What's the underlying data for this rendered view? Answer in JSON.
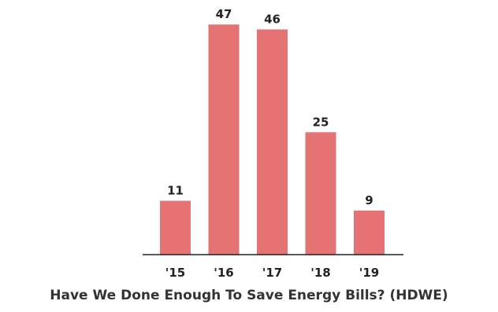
{
  "chart_data": {
    "type": "bar",
    "title": "Have We Done Enough To Save Energy Bills? (HDWE)",
    "categories": [
      "'15",
      "'16",
      "'17",
      "'18",
      "'19"
    ],
    "values": [
      11,
      47,
      46,
      25,
      9
    ],
    "xlabel": "",
    "ylabel": "",
    "ylim": [
      0,
      50
    ],
    "grid": false,
    "legend": "none",
    "bar_color": "#e57373",
    "axis_color": "#222222",
    "data_labels": true
  }
}
